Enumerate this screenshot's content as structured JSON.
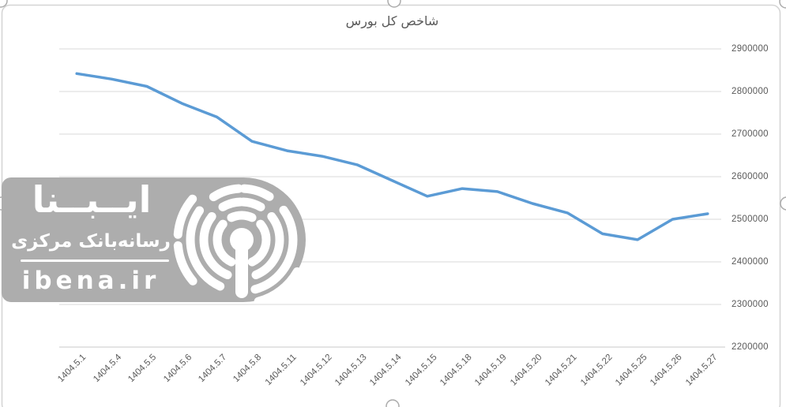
{
  "chart_data": {
    "type": "line",
    "title": "شاخص کل بورس",
    "categories": [
      "1404.5.1",
      "1404.5.4",
      "1404.5.5",
      "1404.5.6",
      "1404.5.7",
      "1404.5.8",
      "1404.5.11",
      "1404.5.12",
      "1404.5.13",
      "1404.5.14",
      "1404.5.15",
      "1404.5.18",
      "1404.5.19",
      "1404.5.20",
      "1404.5.21",
      "1404.5.22",
      "1404.5.25",
      "1404.5.26",
      "1404.5.27"
    ],
    "values": [
      2842000,
      2829000,
      2812000,
      2772000,
      2740000,
      2683000,
      2661000,
      2648000,
      2628000,
      2591000,
      2554000,
      2572000,
      2565000,
      2537000,
      2515000,
      2466000,
      2452000,
      2500000,
      2513000
    ],
    "y_ticks": [
      2900000,
      2800000,
      2700000,
      2600000,
      2500000,
      2400000,
      2300000,
      2200000
    ],
    "ylim": [
      2200000,
      2900000
    ],
    "xlabel": "",
    "ylabel": "",
    "legend": "none",
    "grid": true,
    "value_axis_side": "right",
    "line_color": "#5B9BD5",
    "gridline_color": "#D9D9D9",
    "axis_line_color": "#C9C9C9",
    "axis_text_color": "#595959"
  },
  "watermark": {
    "brand": "ایــبــنا",
    "tagline": "رسانه‌بانک مرکزی",
    "site": "ibena.ir"
  }
}
